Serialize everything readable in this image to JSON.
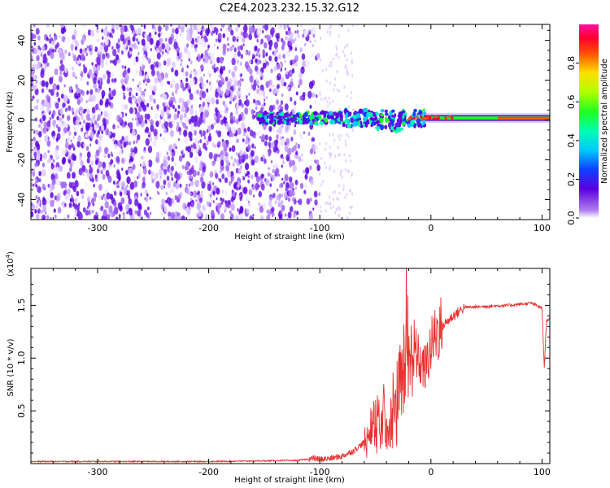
{
  "title": "C2E4.2023.232.15.32.G12",
  "chart_data": [
    {
      "type": "heatmap",
      "xlabel": "Height of straight line (km)",
      "ylabel": "Frequency (Hz)",
      "xlim": [
        -360,
        107
      ],
      "ylim": [
        -50,
        48
      ],
      "x_ticks": [
        -300,
        -200,
        -100,
        0,
        100
      ],
      "y_ticks": [
        -40,
        -20,
        0,
        20,
        40
      ],
      "colorbar": {
        "label": "Normalized spectral amplitude",
        "range": [
          0.0,
          1.0
        ],
        "ticks": [
          "0.0",
          "0.2",
          "0.4",
          "0.6",
          "0.8"
        ],
        "colormap": "rainbow (purple-blue-cyan-green-yellow-red-magenta)"
      },
      "features": {
        "broadband_noise_region_x": [
          -360,
          -100
        ],
        "signal_band_start_x": -155,
        "signal_band_center_frequency_hz": 1,
        "signal_band_peak_x": [
          -20,
          107
        ]
      }
    },
    {
      "type": "line",
      "xlabel": "Height of straight line (km)",
      "ylabel": "SNR (10 * v/v)",
      "y_scale_note": "(x10",
      "y_scale_exponent": "4",
      "xlim": [
        -360,
        107
      ],
      "ylim": [
        0,
        1.85
      ],
      "x_ticks": [
        -300,
        -200,
        -100,
        0,
        100
      ],
      "y_ticks": [
        0.5,
        1.0,
        1.5
      ],
      "y_tick_labels": [
        "0.5",
        "1.0",
        "1.5"
      ],
      "series": [
        {
          "color": "#e83030",
          "x": [
            -360,
            -300,
            -200,
            -120,
            -105,
            -100,
            -90,
            -80,
            -70,
            -60,
            -55,
            -50,
            -45,
            -40,
            -35,
            -30,
            -25,
            -22,
            -20,
            -15,
            -10,
            -5,
            0,
            5,
            10,
            20,
            30,
            50,
            70,
            90,
            95,
            100,
            102,
            104,
            107
          ],
          "y": [
            0.02,
            0.02,
            0.02,
            0.03,
            0.05,
            0.04,
            0.05,
            0.07,
            0.12,
            0.2,
            0.35,
            0.45,
            0.5,
            0.55,
            0.6,
            0.7,
            0.95,
            1.8,
            0.9,
            1.1,
            0.95,
            0.9,
            1.1,
            1.25,
            1.3,
            1.4,
            1.48,
            1.49,
            1.5,
            1.52,
            1.5,
            1.47,
            0.9,
            1.35,
            1.38
          ]
        }
      ]
    }
  ]
}
